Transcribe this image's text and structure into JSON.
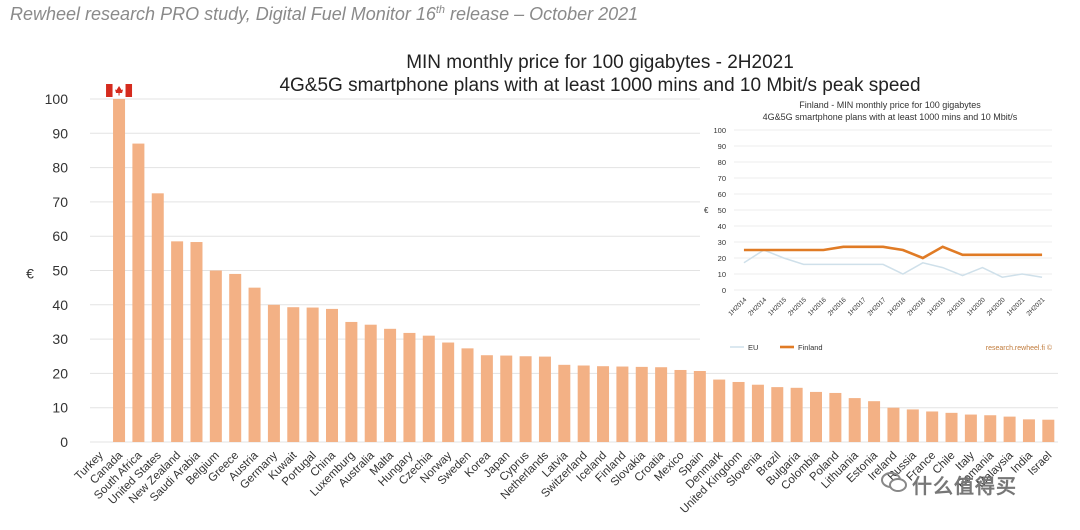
{
  "header": {
    "text": "Rewheel research PRO study, Digital Fuel Monitor 16",
    "sup": "th",
    "tail": " release – October 2021"
  },
  "watermark": "什么值得买",
  "colors": {
    "bar": "#f3b185",
    "grid": "#e3e3e3",
    "finland": "#e07b25",
    "eu": "#cfe0ea",
    "flagRed": "#d52b1e"
  },
  "chart_data": [
    {
      "type": "bar",
      "title": "MIN monthly price for 100 gigabytes - 2H2021",
      "subtitle": "4G&5G smartphone plans with at least 1000 mins and 10 Mbit/s peak speed",
      "xlabel": "",
      "ylabel": "€",
      "ylim": [
        0,
        100
      ],
      "yticks": [
        0,
        10,
        20,
        30,
        40,
        50,
        60,
        70,
        80,
        90,
        100
      ],
      "grid": true,
      "categories": [
        "Turkey",
        "Canada",
        "South Africa",
        "United States",
        "New Zealand",
        "Saudi Arabia",
        "Belgium",
        "Greece",
        "Austria",
        "Germany",
        "Kuwait",
        "Portugal",
        "China",
        "Luxemburg",
        "Australia",
        "Malta",
        "Hungary",
        "Czechia",
        "Norway",
        "Sweden",
        "Korea",
        "Japan",
        "Cyprus",
        "Netherlands",
        "Latvia",
        "Switzerland",
        "Iceland",
        "Finland",
        "Slovakia",
        "Croatia",
        "Mexico",
        "Spain",
        "Denmark",
        "United Kingdom",
        "Slovenia",
        "Brazil",
        "Bulgaria",
        "Colombia",
        "Poland",
        "Lithuania",
        "Estonia",
        "Ireland",
        "Russia",
        "France",
        "Chile",
        "Italy",
        "Romania",
        "Malaysia",
        "India",
        "Israel"
      ],
      "values": [
        0,
        101,
        87,
        72.5,
        58.5,
        58.3,
        50,
        49,
        45,
        40,
        39.3,
        39.2,
        38.8,
        35,
        34.2,
        33,
        31.8,
        31,
        29,
        27.3,
        25.3,
        25.2,
        25,
        24.9,
        22.5,
        22.3,
        22.1,
        22,
        21.9,
        21.8,
        21,
        20.7,
        18.2,
        17.5,
        16.7,
        16,
        15.8,
        14.6,
        14.3,
        12.8,
        11.9,
        10,
        9.5,
        8.9,
        8.5,
        8,
        7.8,
        7.4,
        6.6,
        6.5
      ],
      "annotation": "Canada flag above Canada bar (value exceeds axis)"
    },
    {
      "type": "line",
      "title": "Finland - MIN monthly price for 100 gigabytes",
      "subtitle": "4G&5G smartphone plans with at least 1000 mins and 10 Mbit/s",
      "ylabel": "€",
      "ylim": [
        0,
        100
      ],
      "yticks": [
        0,
        10,
        20,
        30,
        40,
        50,
        60,
        70,
        80,
        90,
        100
      ],
      "grid": true,
      "x": [
        "1H2014",
        "2H2014",
        "1H2015",
        "2H2015",
        "1H2016",
        "2H2016",
        "1H2017",
        "2H2017",
        "1H2018",
        "2H2018",
        "1H2019",
        "2H2019",
        "1H2020",
        "2H2020",
        "1H2021",
        "2H2021"
      ],
      "series": [
        {
          "name": "EU",
          "values": [
            17,
            25,
            20,
            16,
            16,
            16,
            16,
            16,
            10,
            17,
            14,
            9,
            14,
            8,
            10,
            8
          ]
        },
        {
          "name": "Finland",
          "values": [
            25,
            25,
            25,
            25,
            25,
            27,
            27,
            27,
            25,
            20,
            27,
            22,
            22,
            22,
            22,
            22
          ]
        }
      ],
      "legend": "bottom",
      "source": "research.rewheel.fi ©"
    }
  ]
}
